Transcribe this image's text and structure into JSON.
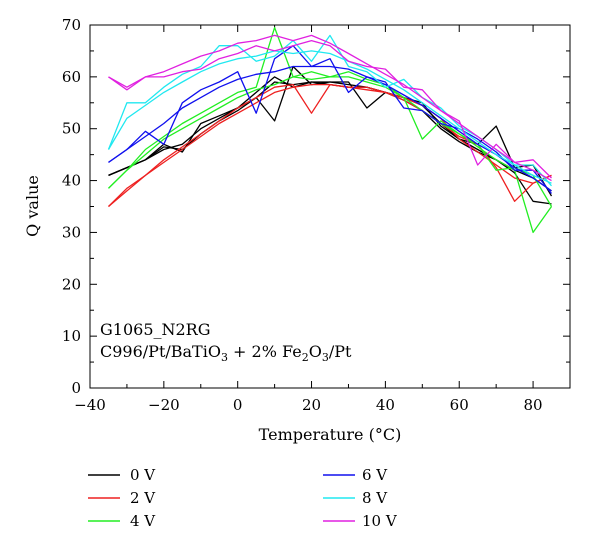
{
  "chart_data": {
    "type": "line",
    "xlabel": "Temperature (°C)",
    "ylabel": "Q value",
    "xlim": [
      -40,
      90
    ],
    "ylim": [
      0,
      70
    ],
    "xticks": [
      -40,
      -20,
      0,
      20,
      40,
      60,
      80
    ],
    "yticks": [
      0,
      10,
      20,
      30,
      40,
      50,
      60,
      70
    ],
    "grid": false,
    "legend_position": "bottom",
    "annotation": {
      "line1": "G1065_N2RG",
      "line2_pre": "C996/Pt/BaTiO",
      "line2_sub1": "3",
      "line2_mid": " + 2% Fe",
      "line2_sub2": "2",
      "line2_o": "O",
      "line2_sub3": "3",
      "line2_post": "/Pt"
    },
    "series": [
      {
        "name": "0 V",
        "color": "#000000",
        "lines": [
          {
            "x": [
              -35,
              -30,
              -25,
              -20,
              -15,
              -10,
              -5,
              0,
              5,
              10,
              15,
              20,
              25,
              30,
              35,
              40,
              45,
              50,
              55,
              60,
              65,
              70,
              75,
              80,
              85
            ],
            "y": [
              41,
              42.5,
              44,
              46,
              47,
              50,
              52,
              54,
              57,
              60,
              58,
              59,
              59,
              58.5,
              58,
              57,
              56,
              54.5,
              51,
              48,
              46,
              44,
              42,
              40.5,
              38
            ]
          },
          {
            "x": [
              -35,
              -30,
              -25,
              -20,
              -15,
              -10,
              -5,
              0,
              5,
              10,
              15,
              20,
              25,
              30,
              35,
              40,
              45,
              50,
              55,
              60,
              65,
              70,
              75,
              80,
              85
            ],
            "y": [
              41,
              42.5,
              44,
              47,
              45.5,
              51,
              52.5,
              54,
              56,
              51.5,
              62,
              58.5,
              59,
              59,
              54,
              57,
              56,
              55,
              50.5,
              48,
              47,
              50.5,
              42.5,
              43,
              37
            ]
          },
          {
            "x": [
              -35,
              -30,
              -25,
              -20,
              -15,
              -10,
              -5,
              0,
              5,
              10,
              15,
              20,
              25,
              30,
              35,
              40,
              45,
              50,
              55,
              60,
              65,
              70,
              75,
              80,
              85
            ],
            "y": [
              41,
              42.5,
              44,
              46.5,
              46,
              49,
              51.5,
              53.5,
              56,
              59,
              58.5,
              59,
              58.5,
              58,
              58,
              57,
              55.5,
              53.5,
              50,
              47.5,
              45.5,
              44,
              41.5,
              36,
              35.5
            ]
          }
        ]
      },
      {
        "name": "2 V",
        "color": "#ee2020",
        "lines": [
          {
            "x": [
              -35,
              -30,
              -25,
              -20,
              -15,
              -10,
              -5,
              0,
              5,
              10,
              15,
              20,
              25,
              30,
              35,
              40,
              45,
              50,
              55,
              60,
              65,
              70,
              75,
              80,
              85
            ],
            "y": [
              35,
              38,
              41,
              43.5,
              46,
              48.5,
              51,
              53,
              55,
              57,
              58,
              58.5,
              58.5,
              58,
              57.5,
              57,
              56,
              54.5,
              52,
              48,
              45.5,
              43,
              40.5,
              39.5,
              41
            ]
          },
          {
            "x": [
              -35,
              -30,
              -25,
              -20,
              -15,
              -10,
              -5,
              0,
              5,
              10,
              15,
              20,
              25,
              30,
              35,
              40,
              45,
              50,
              55,
              60,
              65,
              70,
              75,
              80,
              85
            ],
            "y": [
              35,
              38.5,
              41,
              44,
              46.5,
              49,
              51.5,
              54,
              56,
              58,
              58.5,
              53,
              58.5,
              58,
              58,
              57,
              55.5,
              53.5,
              51,
              48.5,
              47,
              42.5,
              36,
              39.5,
              41
            ]
          }
        ]
      },
      {
        "name": "4 V",
        "color": "#22ee22",
        "lines": [
          {
            "x": [
              -35,
              -30,
              -25,
              -20,
              -15,
              -10,
              -5,
              0,
              5,
              10,
              15,
              20,
              25,
              30,
              35,
              40,
              45,
              50,
              55,
              60,
              65,
              70,
              75,
              80,
              85
            ],
            "y": [
              38.5,
              42,
              45,
              48,
              50,
              52,
              54,
              56,
              57.5,
              58.5,
              60,
              59.5,
              60,
              60,
              59,
              58,
              56,
              53.5,
              51,
              49,
              46.5,
              44,
              42,
              30,
              35
            ]
          },
          {
            "x": [
              -35,
              -30,
              -25,
              -20,
              -15,
              -10,
              -5,
              0,
              5,
              10,
              15,
              20,
              25,
              30,
              35,
              40,
              45,
              50,
              55,
              60,
              65,
              70,
              75,
              80,
              85
            ],
            "y": [
              38.5,
              42,
              46,
              48.5,
              51,
              53,
              55,
              57,
              58,
              69.5,
              60,
              61,
              60,
              61,
              59.5,
              58.5,
              56,
              48,
              51.5,
              49,
              47,
              42,
              42.5,
              41,
              35
            ]
          }
        ]
      },
      {
        "name": "6 V",
        "color": "#1010ee",
        "lines": [
          {
            "x": [
              -35,
              -30,
              -25,
              -20,
              -15,
              -10,
              -5,
              0,
              5,
              10,
              15,
              20,
              25,
              30,
              35,
              40,
              45,
              50,
              55,
              60,
              65,
              70,
              75,
              80,
              85
            ],
            "y": [
              43.5,
              46,
              48.5,
              51,
              54,
              56,
              58,
              59.5,
              60.5,
              61,
              62,
              62,
              62,
              61.5,
              60,
              58.5,
              56.5,
              54.5,
              52,
              49.5,
              47,
              45,
              42.5,
              40.5,
              38
            ]
          },
          {
            "x": [
              -35,
              -30,
              -25,
              -20,
              -15,
              -10,
              -5,
              0,
              5,
              10,
              15,
              20,
              25,
              30,
              35,
              40,
              45,
              50,
              55,
              60,
              65,
              70,
              75,
              80,
              85
            ],
            "y": [
              43.5,
              46,
              49.5,
              47,
              55,
              57.5,
              59,
              61,
              53,
              63.5,
              66,
              62,
              63.5,
              57,
              60,
              59,
              54,
              53.5,
              51,
              50,
              48,
              45.5,
              42,
              42,
              37.5
            ]
          }
        ]
      },
      {
        "name": "8 V",
        "color": "#20e8f0",
        "lines": [
          {
            "x": [
              -35,
              -30,
              -25,
              -20,
              -15,
              -10,
              -5,
              0,
              5,
              10,
              15,
              20,
              25,
              30,
              35,
              40,
              45,
              50,
              55,
              60,
              65,
              70,
              75,
              80,
              85
            ],
            "y": [
              46,
              52,
              54.5,
              57,
              59,
              61,
              62.5,
              63.5,
              64,
              65,
              64.5,
              65,
              64.5,
              63,
              61.5,
              59.5,
              57.5,
              55,
              52.5,
              50,
              47.5,
              45,
              43,
              41,
              39.5
            ]
          },
          {
            "x": [
              -35,
              -30,
              -25,
              -20,
              -15,
              -10,
              -5,
              0,
              5,
              10,
              15,
              20,
              25,
              30,
              35,
              40,
              45,
              50,
              55,
              60,
              65,
              70,
              75,
              80,
              85
            ],
            "y": [
              46,
              55,
              55,
              58,
              60.5,
              62,
              66,
              66,
              63,
              64,
              67,
              63,
              68,
              62,
              61,
              58,
              59.5,
              56,
              54,
              50.5,
              48.5,
              46,
              43,
              43,
              39
            ]
          }
        ]
      },
      {
        "name": "10 V",
        "color": "#e020e0",
        "lines": [
          {
            "x": [
              -35,
              -30,
              -25,
              -20,
              -15,
              -10,
              -5,
              0,
              5,
              10,
              15,
              20,
              25,
              30,
              35,
              40,
              45,
              50,
              55,
              60,
              65,
              70,
              75,
              80,
              85
            ],
            "y": [
              60,
              58,
              60,
              61,
              62.5,
              64,
              65,
              66.5,
              67,
              68,
              67,
              68,
              66.5,
              64.5,
              62.5,
              60.5,
              58.5,
              56,
              53.5,
              51,
              48.5,
              46,
              43.5,
              42,
              40
            ]
          },
          {
            "x": [
              -35,
              -30,
              -25,
              -20,
              -15,
              -10,
              -5,
              0,
              5,
              10,
              15,
              20,
              25,
              30,
              35,
              40,
              45,
              50,
              55,
              60,
              65,
              70,
              75,
              80,
              85
            ],
            "y": [
              60,
              57.5,
              60,
              60,
              61,
              61.5,
              63.5,
              64.5,
              66,
              65,
              66,
              67,
              66,
              63,
              62,
              61.5,
              58,
              57.5,
              53.5,
              51.5,
              43,
              47,
              43.5,
              44,
              40.5
            ]
          }
        ]
      }
    ]
  }
}
